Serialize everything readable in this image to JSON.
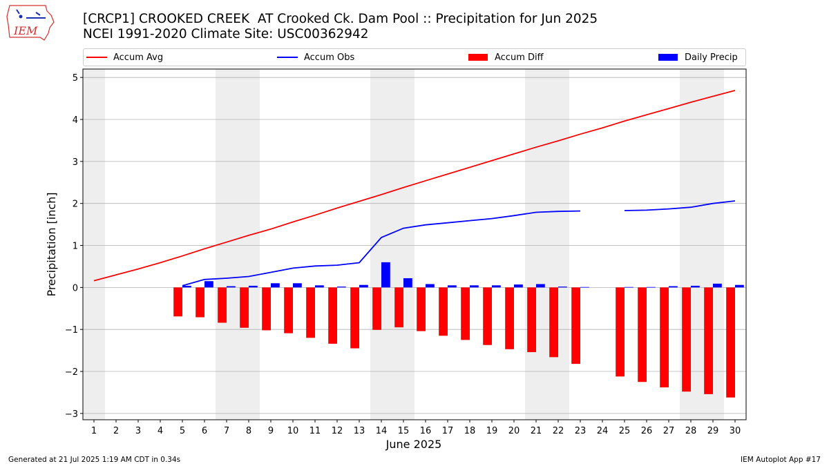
{
  "header": {
    "title_line1": "[CRCP1] CROOKED CREEK  AT Crooked Ck. Dam Pool :: Precipitation for Jun 2025",
    "title_line2": "NCEI 1991-2020 Climate Site: USC00362942",
    "logo_text": "IEM"
  },
  "footer": {
    "left": "Generated at 21 Jul 2025 1:19 AM CDT in 0.34s",
    "right": "IEM Autoplot App #17"
  },
  "colors": {
    "avg": "#ff0000",
    "obs": "#0000ff",
    "diff": "#ff0000",
    "daily": "#0000ff",
    "weekend_band": "#eeeeee",
    "grid": "#b0b0b0"
  },
  "chart_data": {
    "type": "bar",
    "xlabel": "June 2025",
    "ylabel": "Precipitation [inch]",
    "ylim": [
      -3.15,
      5.2
    ],
    "yticks": [
      -3,
      -2,
      -1,
      0,
      1,
      2,
      3,
      4,
      5
    ],
    "ytick_labels": [
      "−3",
      "−2",
      "−1",
      "0",
      "1",
      "2",
      "3",
      "4",
      "5"
    ],
    "grid": "horizontal",
    "legend_position": "top",
    "weekend_days": [
      1,
      7,
      8,
      14,
      15,
      21,
      22,
      28,
      29
    ],
    "x": [
      1,
      2,
      3,
      4,
      5,
      6,
      7,
      8,
      9,
      10,
      11,
      12,
      13,
      14,
      15,
      16,
      17,
      18,
      19,
      20,
      21,
      22,
      23,
      24,
      25,
      26,
      27,
      28,
      29,
      30
    ],
    "series": [
      {
        "name": "Accum Avg",
        "kind": "line",
        "values": [
          0.16,
          0.3,
          0.44,
          0.59,
          0.75,
          0.92,
          1.08,
          1.24,
          1.39,
          1.56,
          1.72,
          1.89,
          2.05,
          2.21,
          2.38,
          2.54,
          2.7,
          2.86,
          3.02,
          3.18,
          3.34,
          3.49,
          3.65,
          3.8,
          3.96,
          4.11,
          4.26,
          4.41,
          4.55,
          4.69
        ]
      },
      {
        "name": "Accum Obs",
        "kind": "line",
        "values": [
          null,
          null,
          null,
          null,
          0.04,
          0.19,
          0.22,
          0.26,
          0.36,
          0.46,
          0.51,
          0.53,
          0.59,
          1.19,
          1.41,
          1.49,
          1.54,
          1.59,
          1.64,
          1.71,
          1.79,
          1.81,
          1.82,
          null,
          1.83,
          1.84,
          1.87,
          1.91,
          2.0,
          2.06
        ]
      },
      {
        "name": "Accum Diff",
        "kind": "bar",
        "values": [
          null,
          null,
          null,
          null,
          -0.69,
          -0.71,
          -0.84,
          -0.96,
          -1.02,
          -1.09,
          -1.2,
          -1.34,
          -1.45,
          -1.01,
          -0.95,
          -1.04,
          -1.15,
          -1.25,
          -1.37,
          -1.47,
          -1.54,
          -1.66,
          -1.82,
          null,
          -2.12,
          -2.25,
          -2.38,
          -2.48,
          -2.54,
          -2.62
        ]
      },
      {
        "name": "Daily Precip",
        "kind": "bar",
        "values": [
          null,
          null,
          null,
          null,
          0.04,
          0.15,
          0.03,
          0.04,
          0.1,
          0.1,
          0.05,
          0.02,
          0.06,
          0.6,
          0.22,
          0.08,
          0.05,
          0.05,
          0.05,
          0.07,
          0.08,
          0.02,
          0.01,
          null,
          0.01,
          0.01,
          0.03,
          0.04,
          0.09,
          0.06
        ]
      }
    ]
  }
}
